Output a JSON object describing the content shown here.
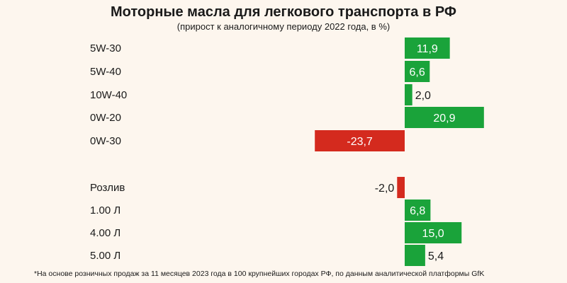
{
  "title": "Моторные масла для легкового транспорта в РФ",
  "subtitle": "(прирост к аналогичному периоду 2022 года, в %)",
  "footnote": "*На основе розничных продаж за 11 месяцев 2023 года в 100 крупнейших городах РФ, по данным аналитической платформы GfK",
  "colors": {
    "positive": "#1aa33a",
    "negative": "#d42a1e",
    "background": "#fdf6ee",
    "label_inside": "#ffffff",
    "label_outside": "#1a1a1a"
  },
  "chart_data": {
    "type": "bar",
    "orientation": "horizontal",
    "title": "Моторные масла для легкового транспорта в РФ",
    "subtitle": "(прирост к аналогичному периоду 2022 года, в %)",
    "groups": [
      {
        "categories": [
          "5W-30",
          "5W-40",
          "10W-40",
          "0W-20",
          "0W-30"
        ],
        "values": [
          11.9,
          6.6,
          2.0,
          20.9,
          -23.7
        ],
        "value_labels": [
          "11,9",
          "6,6",
          "2,0",
          "20,9",
          "-23,7"
        ]
      },
      {
        "categories": [
          "Розлив",
          "1.00 Л",
          "4.00 Л",
          "5.00 Л"
        ],
        "values": [
          -2.0,
          6.8,
          15.0,
          5.4
        ],
        "value_labels": [
          "-2,0",
          "6,8",
          "15,0",
          "5,4"
        ]
      }
    ],
    "xlim": [
      -23.7,
      20.9
    ],
    "grid": false,
    "legend": "none"
  }
}
